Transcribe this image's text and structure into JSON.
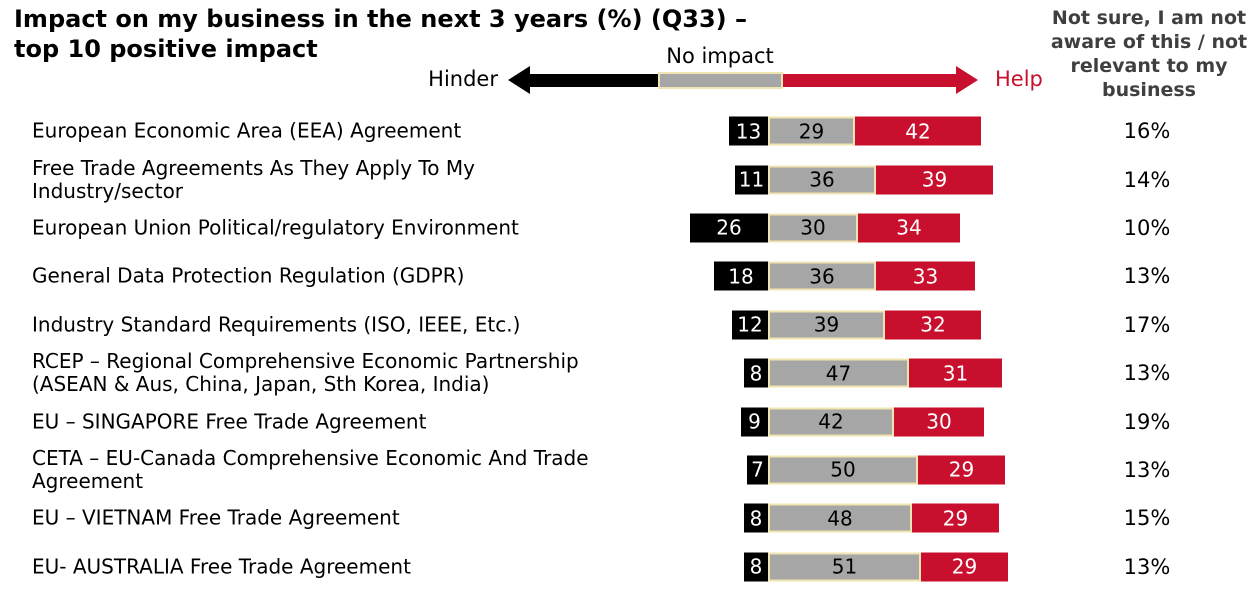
{
  "title": "Impact on my business in the next 3 years (%) (Q33) –\ntop 10 positive impact",
  "right_column_header": "Not sure, I am not\naware of this / not\nrelevant to my\nbusiness",
  "legend": {
    "hinder": "Hinder",
    "no_impact": "No impact",
    "help": "Help"
  },
  "colors": {
    "hinder": "#000000",
    "no_impact": "#A6A6A6",
    "help": "#C8102E",
    "segment_border": "#F0E4B0",
    "header_text": "#3F3F3F"
  },
  "chart_data": {
    "type": "bar",
    "orientation": "horizontal",
    "stacked": true,
    "title": "Impact on my business in the next 3 years (%) (Q33) – top 10 positive impact",
    "series_names": [
      "Hinder",
      "No impact",
      "Help"
    ],
    "extra_column": "Not sure, I am not aware of this / not relevant to my business",
    "rows": [
      {
        "label": "European Economic Area (EEA) Agreement",
        "hinder": 13,
        "no_impact": 29,
        "help": 42,
        "not_sure": "16%"
      },
      {
        "label": "Free Trade Agreements As They Apply To My\nIndustry/sector",
        "hinder": 11,
        "no_impact": 36,
        "help": 39,
        "not_sure": "14%"
      },
      {
        "label": "European Union Political/regulatory Environment",
        "hinder": 26,
        "no_impact": 30,
        "help": 34,
        "not_sure": "10%"
      },
      {
        "label": "General Data Protection Regulation (GDPR)",
        "hinder": 18,
        "no_impact": 36,
        "help": 33,
        "not_sure": "13%"
      },
      {
        "label": "Industry Standard Requirements (ISO, IEEE, Etc.)",
        "hinder": 12,
        "no_impact": 39,
        "help": 32,
        "not_sure": "17%"
      },
      {
        "label": "RCEP – Regional Comprehensive Economic Partnership\n(ASEAN & Aus, China, Japan, Sth Korea, India)",
        "hinder": 8,
        "no_impact": 47,
        "help": 31,
        "not_sure": "13%"
      },
      {
        "label": "EU – SINGAPORE Free Trade Agreement",
        "hinder": 9,
        "no_impact": 42,
        "help": 30,
        "not_sure": "19%"
      },
      {
        "label": "CETA – EU-Canada Comprehensive Economic And Trade\nAgreement",
        "hinder": 7,
        "no_impact": 50,
        "help": 29,
        "not_sure": "13%"
      },
      {
        "label": "EU – VIETNAM Free Trade Agreement",
        "hinder": 8,
        "no_impact": 48,
        "help": 29,
        "not_sure": "15%"
      },
      {
        "label": "EU- AUSTRALIA Free Trade Agreement",
        "hinder": 8,
        "no_impact": 51,
        "help": 29,
        "not_sure": "13%"
      }
    ]
  }
}
